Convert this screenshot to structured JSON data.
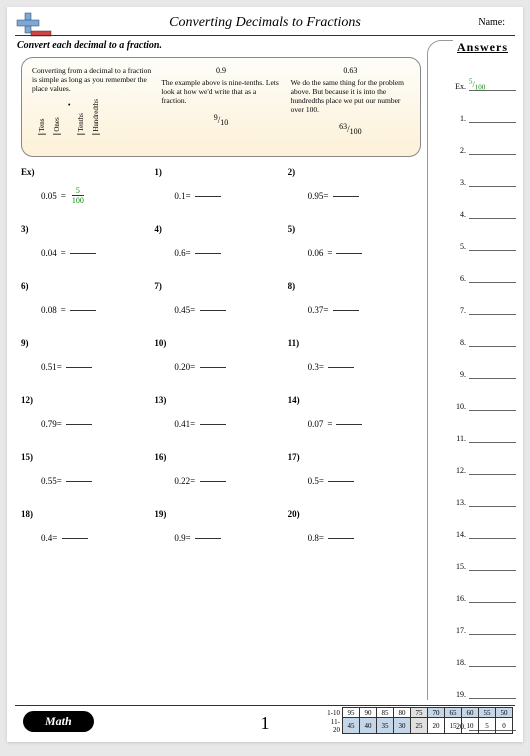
{
  "header": {
    "title": "Converting Decimals to Fractions",
    "name_label": "Name:",
    "instruction": "Convert each decimal to a fraction."
  },
  "answers_header": "Answers",
  "instruction_box": {
    "col1": {
      "text": "Converting from a decimal to a fraction is simple as long as you remember the place values.",
      "pv": [
        "Tens",
        "Ones",
        "Tenths",
        "Hundredths"
      ]
    },
    "col2": {
      "title": "0.9",
      "text": "The example above is nine-tenths. Lets look at how we'd write that as a fraction.",
      "num": "9",
      "den": "10"
    },
    "col3": {
      "title": "0.63",
      "text": "We do the same thing for the problem above. But because it is into the hundredths place we put our number over 100.",
      "num": "63",
      "den": "100"
    }
  },
  "example": {
    "label": "Ex)",
    "val": "0.05",
    "num": "5",
    "den": "100"
  },
  "problems": [
    [
      {
        "n": "Ex)",
        "v": "0.05",
        "ex": true
      },
      {
        "n": "1)",
        "v": "0.1="
      },
      {
        "n": "2)",
        "v": "0.95="
      }
    ],
    [
      {
        "n": "3)",
        "v": "0.04"
      },
      {
        "n": "4)",
        "v": "0.6="
      },
      {
        "n": "5)",
        "v": "0.06"
      }
    ],
    [
      {
        "n": "6)",
        "v": "0.08"
      },
      {
        "n": "7)",
        "v": "0.45="
      },
      {
        "n": "8)",
        "v": "0.37="
      }
    ],
    [
      {
        "n": "9)",
        "v": "0.51="
      },
      {
        "n": "10)",
        "v": "0.20="
      },
      {
        "n": "11)",
        "v": "0.3="
      }
    ],
    [
      {
        "n": "12)",
        "v": "0.79="
      },
      {
        "n": "13)",
        "v": "0.41="
      },
      {
        "n": "14)",
        "v": "0.07"
      }
    ],
    [
      {
        "n": "15)",
        "v": "0.55="
      },
      {
        "n": "16)",
        "v": "0.22="
      },
      {
        "n": "17)",
        "v": "0.5="
      }
    ],
    [
      {
        "n": "18)",
        "v": "0.4="
      },
      {
        "n": "19)",
        "v": "0.9="
      },
      {
        "n": "20)",
        "v": "0.8="
      }
    ]
  ],
  "answers": {
    "ex_label": "Ex.",
    "ex_num": "5",
    "ex_den": "100",
    "rows": [
      "1.",
      "2.",
      "3.",
      "4.",
      "5.",
      "6.",
      "7.",
      "8.",
      "9.",
      "10.",
      "11.",
      "12.",
      "13.",
      "14.",
      "15.",
      "16.",
      "17.",
      "18.",
      "19.",
      "20."
    ]
  },
  "footer": {
    "math": "Math",
    "page": "1",
    "score": {
      "r1_label": "1-10",
      "r1": [
        "95",
        "90",
        "85",
        "80",
        "75",
        "70",
        "65",
        "60",
        "55",
        "50"
      ],
      "r2_label": "11-20",
      "r2": [
        "45",
        "40",
        "35",
        "30",
        "25",
        "20",
        "15",
        "10",
        "5",
        "0"
      ]
    }
  },
  "colors": {
    "accent_green": "#0a8a0a",
    "logo_blue": "#7ba7d9",
    "logo_red": "#c44",
    "shade1": "#e0e0e0",
    "shade2": "#c5d6e8"
  }
}
